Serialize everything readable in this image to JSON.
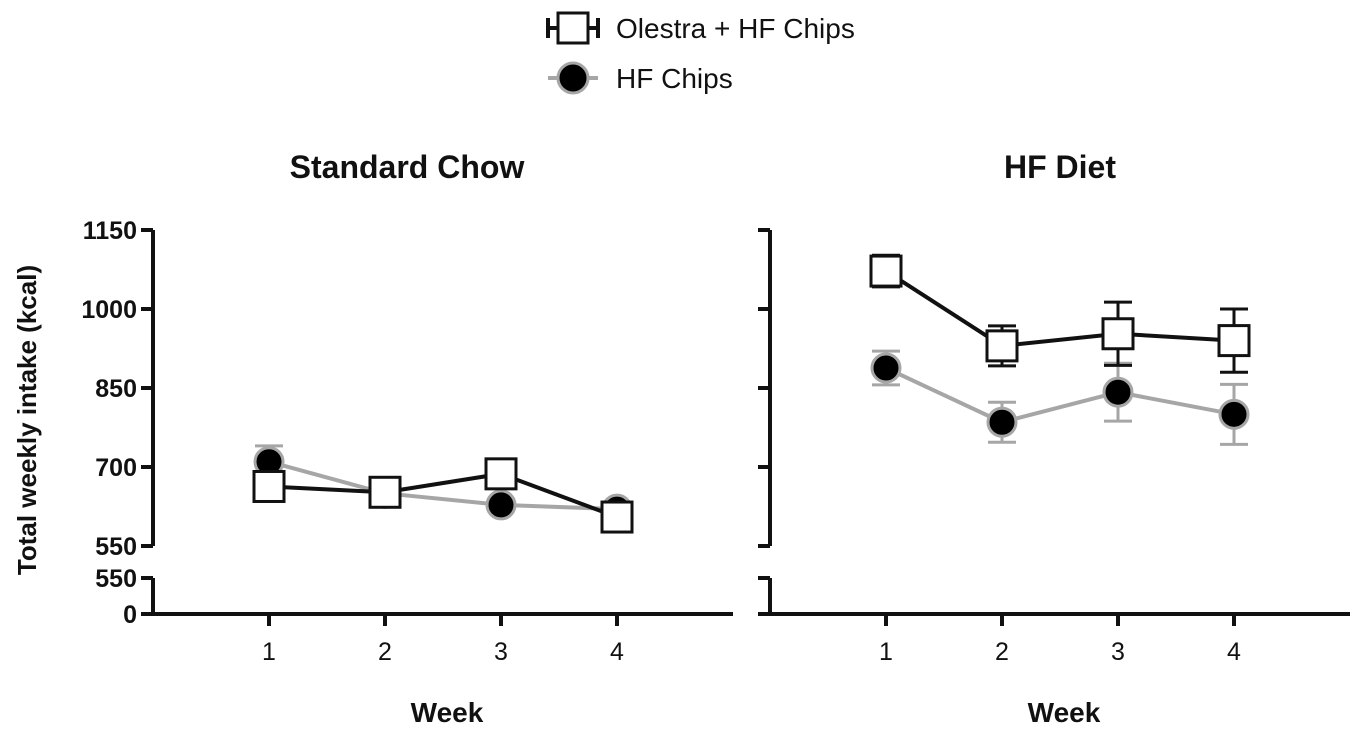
{
  "legend": [
    {
      "name": "Olestra + HF Chips",
      "marker": "square",
      "line_color": "#111111",
      "fill": "#ffffff"
    },
    {
      "name": "HF Chips",
      "marker": "circle",
      "line_color": "#a6a6a6",
      "fill": "#000000"
    }
  ],
  "ylabel": "Total weekly intake (kcal)",
  "chart_data": [
    {
      "type": "line",
      "title": "Standard Chow",
      "xlabel": "Week",
      "x": [
        1,
        2,
        3,
        4
      ],
      "xlim": [
        0,
        5
      ],
      "ylim": [
        550,
        1150
      ],
      "yticks": [
        "1150",
        "1000",
        "850",
        "700",
        "550"
      ],
      "broken_axis_ticks": [
        "550",
        "0"
      ],
      "series": [
        {
          "name": "Olestra + HF Chips",
          "values": [
            663,
            652,
            687,
            605
          ],
          "errors": [
            0,
            0,
            0,
            0
          ]
        },
        {
          "name": "HF Chips",
          "values": [
            710,
            650,
            628,
            620
          ],
          "errors": [
            30,
            0,
            0,
            0
          ]
        }
      ]
    },
    {
      "type": "line",
      "title": "HF Diet",
      "xlabel": "Week",
      "x": [
        1,
        2,
        3,
        4
      ],
      "xlim": [
        0,
        5
      ],
      "ylim": [
        550,
        1150
      ],
      "yticks": [],
      "series": [
        {
          "name": "Olestra + HF Chips",
          "values": [
            1072,
            930,
            953,
            940
          ],
          "errors": [
            30,
            38,
            60,
            60
          ]
        },
        {
          "name": "HF Chips",
          "values": [
            888,
            785,
            842,
            800
          ],
          "errors": [
            32,
            38,
            55,
            57
          ]
        }
      ]
    }
  ]
}
